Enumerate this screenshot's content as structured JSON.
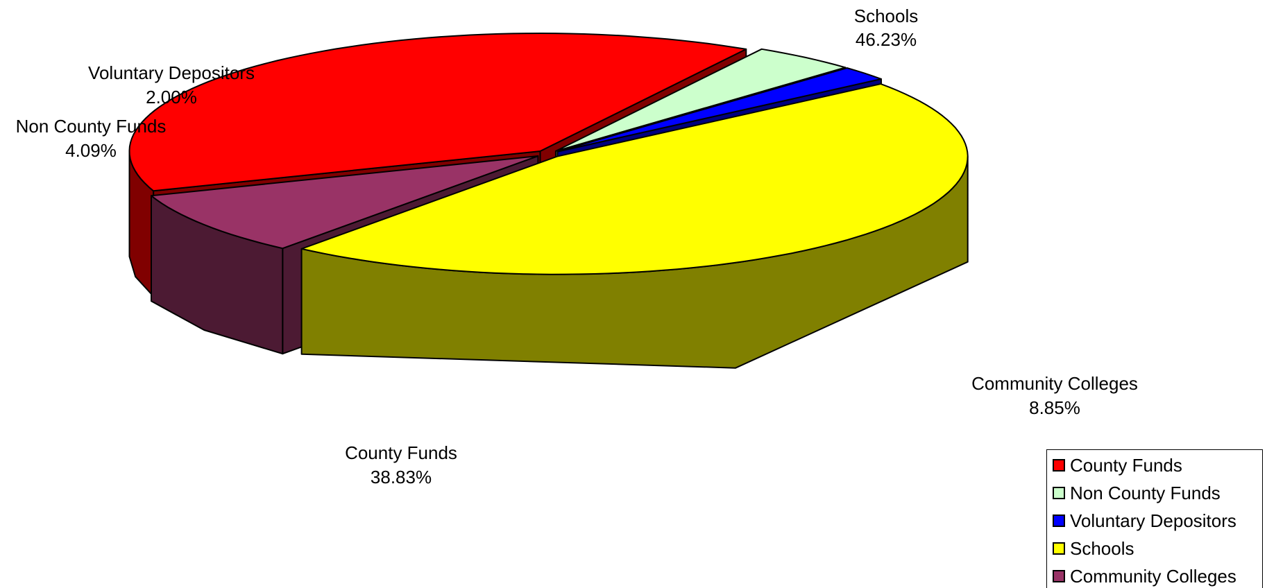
{
  "chart_data": {
    "type": "pie",
    "categories": [
      "County Funds",
      "Non County Funds",
      "Voluntary Depositors",
      "Schools",
      "Community Colleges"
    ],
    "values": [
      38.83,
      4.09,
      2.0,
      46.23,
      8.85
    ],
    "value_labels": [
      "38.83%",
      "4.09%",
      "2.00%",
      "46.23%",
      "8.85%"
    ],
    "colors": [
      "#FF0000",
      "#CCFFCC",
      "#0000FF",
      "#FFFF00",
      "#993366"
    ],
    "side_colors": [
      "#800000",
      "#5F7F5F",
      "#00007F",
      "#808000",
      "#4C1A33"
    ],
    "exploded": true,
    "three_d": true,
    "legend": "bottom-right"
  },
  "legend": {
    "items": [
      {
        "label": "County Funds",
        "color": "#FF0000"
      },
      {
        "label": "Non County Funds",
        "color": "#CCFFCC"
      },
      {
        "label": "Voluntary Depositors",
        "color": "#0000FF"
      },
      {
        "label": "Schools",
        "color": "#FFFF00"
      },
      {
        "label": "Community Colleges",
        "color": "#993366"
      }
    ]
  }
}
